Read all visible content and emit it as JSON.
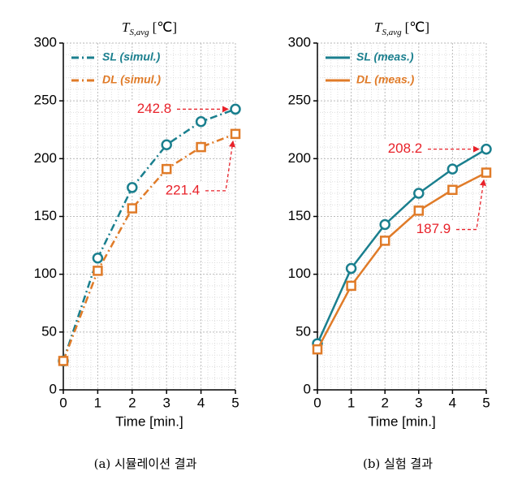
{
  "chart_data": [
    {
      "type": "line",
      "title": "T",
      "title_subscript": "S,avg",
      "title_unit": "[℃]",
      "x_label": "Time [min.]",
      "caption": "(a) 시뮬레이션 결과",
      "x": [
        0,
        1,
        2,
        3,
        4,
        5
      ],
      "series": [
        {
          "name": "SL (simul.)",
          "color": "#1a7f8e",
          "line_style": "dashdot",
          "marker": "circle",
          "values": [
            25,
            114,
            175,
            212,
            232,
            242.8
          ]
        },
        {
          "name": "DL (simul.)",
          "color": "#e07b28",
          "line_style": "dashdot",
          "marker": "square",
          "values": [
            25,
            103,
            157,
            191,
            210,
            221.4
          ]
        }
      ],
      "annotations": [
        {
          "text": "242.8",
          "x": 5,
          "y": 242.8
        },
        {
          "text": "221.4",
          "x": 5,
          "y": 221.4
        }
      ],
      "xlim": [
        0,
        5
      ],
      "xticks": [
        0,
        1,
        2,
        3,
        4,
        5
      ],
      "ylim": [
        0,
        300
      ],
      "yticks": [
        0,
        50,
        100,
        150,
        200,
        250,
        300
      ],
      "grid": true,
      "legend": "upper left"
    },
    {
      "type": "line",
      "title": "T",
      "title_subscript": "S,avg",
      "title_unit": "[℃]",
      "x_label": "Time [min.]",
      "caption": "(b) 실험 결과",
      "x": [
        0,
        1,
        2,
        3,
        4,
        5
      ],
      "series": [
        {
          "name": "SL (meas.)",
          "color": "#1a7f8e",
          "line_style": "solid",
          "marker": "circle",
          "values": [
            40,
            105,
            143,
            170,
            191,
            208.2
          ]
        },
        {
          "name": "DL (meas.)",
          "color": "#e07b28",
          "line_style": "solid",
          "marker": "square",
          "values": [
            35,
            90,
            129,
            155,
            173,
            187.9
          ]
        }
      ],
      "annotations": [
        {
          "text": "208.2",
          "x": 5,
          "y": 208.2
        },
        {
          "text": "187.9",
          "x": 5,
          "y": 187.9
        }
      ],
      "xlim": [
        0,
        5
      ],
      "xticks": [
        0,
        1,
        2,
        3,
        4,
        5
      ],
      "ylim": [
        0,
        300
      ],
      "yticks": [
        0,
        50,
        100,
        150,
        200,
        250,
        300
      ],
      "grid": true,
      "legend": "upper left"
    }
  ]
}
